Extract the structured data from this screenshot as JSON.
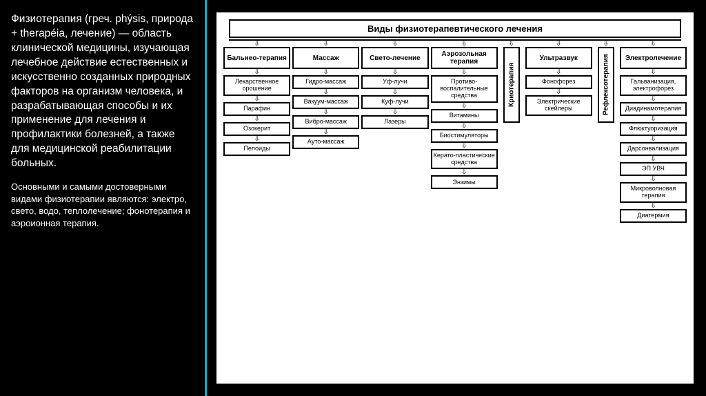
{
  "left": {
    "main_text": "Физиотерапия (греч. phýsis, природа + therapéia, лечение) — область клинической медицины, изучающая лечебное действие естественных и искусственно созданных природных факторов на организм человека, и разрабатывающая способы и их применение для лечения и профилактики болезней, а также для медицинской реабилитации больных.",
    "sub_text": "Основными и самыми достоверными видами физиотерапии являются: электро, свето, водо, теплолечение; фонотерапия и аэроионная терапия."
  },
  "diagram": {
    "title": "Виды  физиотерапевтического лечения",
    "columns": [
      {
        "type": "normal",
        "head": "Бальнео-терапия",
        "items": [
          "Лекарственное орошение",
          "Парафин",
          "Озокерит",
          "Пелоиды"
        ]
      },
      {
        "type": "normal",
        "head": "Массаж",
        "items": [
          "Гидро-массаж",
          "Вакуум-массаж",
          "Вибро-массаж",
          "Ауто-массаж"
        ]
      },
      {
        "type": "normal",
        "head": "Свето-лечение",
        "items": [
          "Уф-лучи",
          "Куф-лучи",
          "Лазеры"
        ]
      },
      {
        "type": "normal",
        "head": "Аэрозольная терапия",
        "items": [
          "Противо-воспалительные средства",
          "Витамины",
          "Биостимуляторы",
          "Керато-пластические средства",
          "Энзимы"
        ]
      },
      {
        "type": "vertical",
        "head": "Криотерапия"
      },
      {
        "type": "normal",
        "head": "Ультразвук",
        "items": [
          "Фонофорез",
          "Электрические скейлеры"
        ]
      },
      {
        "type": "vertical",
        "head": "Рефлексотерапия"
      },
      {
        "type": "normal",
        "head": "Электролечение",
        "items": [
          "Гальванизация, электрофорез",
          "Диадинамотерапия",
          "Флюктуоризация",
          "Дарсонвализация",
          "ЭП УВЧ",
          "Микроволновая терапия",
          "Диатермия"
        ]
      }
    ]
  },
  "style": {
    "bg": "#000000",
    "accent": "#00b8d4",
    "diagram_bg": "#ffffff",
    "border": "#000000"
  }
}
